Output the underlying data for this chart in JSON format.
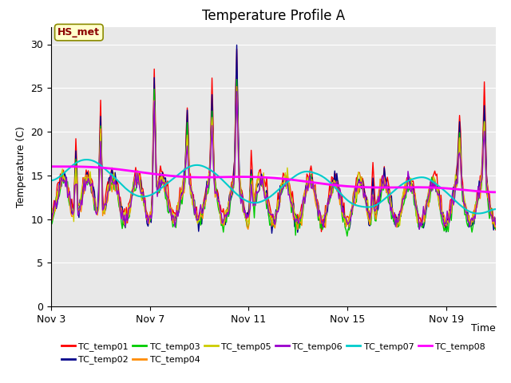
{
  "title": "Temperature Profile A",
  "xlabel": "Time",
  "ylabel": "Temperature (C)",
  "ylim": [
    0,
    32
  ],
  "yticks": [
    0,
    5,
    10,
    15,
    20,
    25,
    30
  ],
  "xtick_labels": [
    "Nov 3",
    "Nov 7",
    "Nov 11",
    "Nov 15",
    "Nov 19"
  ],
  "annotation_text": "HS_met",
  "annotation_color": "#8B0000",
  "annotation_bg": "#FFFFCC",
  "fig_bg_color": "#FFFFFF",
  "plot_bg_color": "#E8E8E8",
  "series_colors": {
    "TC_temp01": "#FF0000",
    "TC_temp02": "#00008B",
    "TC_temp03": "#00CC00",
    "TC_temp04": "#FF8C00",
    "TC_temp05": "#CCCC00",
    "TC_temp06": "#9900CC",
    "TC_temp07": "#00CCCC",
    "TC_temp08": "#FF00FF"
  },
  "legend_entries": [
    [
      "TC_temp01",
      "#FF0000"
    ],
    [
      "TC_temp02",
      "#00008B"
    ],
    [
      "TC_temp03",
      "#00CC00"
    ],
    [
      "TC_temp04",
      "#FF8C00"
    ],
    [
      "TC_temp05",
      "#CCCC00"
    ],
    [
      "TC_temp06",
      "#9900CC"
    ],
    [
      "TC_temp07",
      "#00CCCC"
    ],
    [
      "TC_temp08",
      "#FF00FF"
    ]
  ],
  "title_fontsize": 12,
  "label_fontsize": 9,
  "tick_fontsize": 9,
  "legend_fontsize": 8
}
